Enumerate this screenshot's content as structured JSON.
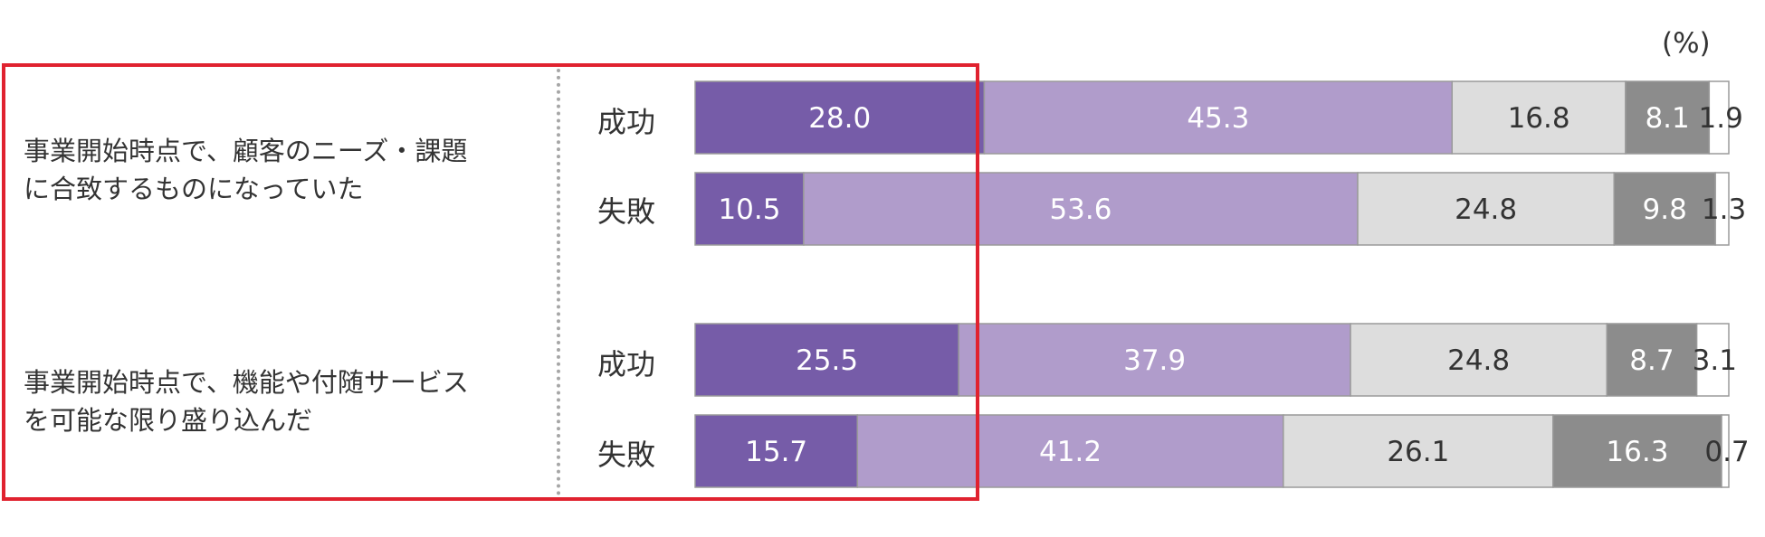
{
  "unit_label": "(%)",
  "questions": [
    {
      "text_line1": "事業開始時点で、顧客のニーズ・課題",
      "text_line2": "に合致するものになっていた"
    },
    {
      "text_line1": "事業開始時点で、機能や付随サービス",
      "text_line2": "を可能な限り盛り込んだ"
    }
  ],
  "colors": {
    "segments": [
      "#765ca8",
      "#b09ccb",
      "#dddddd",
      "#8c8c8c",
      "#ffffff"
    ],
    "label_text": [
      "#ffffff",
      "#ffffff",
      "#333333",
      "#ffffff",
      "#333333"
    ],
    "highlight_border": "#e0222f"
  },
  "chart_data": {
    "type": "bar",
    "orientation": "horizontal",
    "stacked": true,
    "xlim": [
      0,
      100
    ],
    "unit": "(%)",
    "categories": [
      "成功",
      "失敗",
      "成功",
      "失敗"
    ],
    "groups": [
      "事業開始時点で、顧客のニーズ・課題に合致するものになっていた",
      "事業開始時点で、機能や付随サービスを可能な限り盛り込んだ"
    ],
    "bars": [
      {
        "label": "成功",
        "values": [
          28.0,
          45.3,
          16.8,
          8.1,
          1.9
        ],
        "labels": [
          "28.0",
          "45.3",
          "16.8",
          "8.1",
          "1.9"
        ]
      },
      {
        "label": "失敗",
        "values": [
          10.5,
          53.6,
          24.8,
          9.8,
          1.3
        ],
        "labels": [
          "10.5",
          "53.6",
          "24.8",
          "9.8",
          "1.3"
        ]
      },
      {
        "label": "成功",
        "values": [
          25.5,
          37.9,
          24.8,
          8.7,
          3.1
        ],
        "labels": [
          "25.5",
          "37.9",
          "24.8",
          "8.7",
          "3.1"
        ]
      },
      {
        "label": "失敗",
        "values": [
          15.7,
          41.2,
          26.1,
          16.3,
          0.7
        ],
        "labels": [
          "15.7",
          "41.2",
          "26.1",
          "16.3",
          "0.7"
        ]
      }
    ]
  }
}
